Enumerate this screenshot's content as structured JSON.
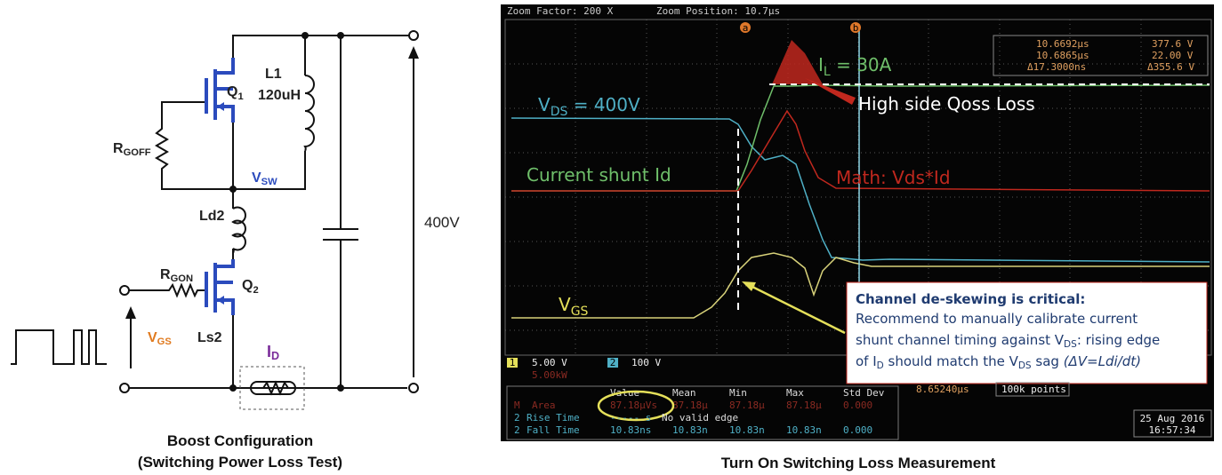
{
  "circuit": {
    "caption": [
      "Boost Configuration",
      "(Switching Power Loss Test)"
    ],
    "labels": {
      "q1": {
        "base": "Q",
        "sub": "1"
      },
      "l1": "L1",
      "l1_value": "120uH",
      "rgoff": {
        "base": "R",
        "sub": "GOFF"
      },
      "vsw": {
        "base": "V",
        "sub": "SW"
      },
      "ld2": "Ld2",
      "rgon": {
        "base": "R",
        "sub": "GON"
      },
      "q2": {
        "base": "Q",
        "sub": "2"
      },
      "vgs": {
        "base": "V",
        "sub": "GS"
      },
      "ls2": "Ls2",
      "id": {
        "base": "I",
        "sub": "D"
      },
      "vout": "400V"
    }
  },
  "scope": {
    "caption": "Turn On Switching Loss Measurement",
    "header": [
      "Zoom Factor: 200 X",
      "Zoom Position: 10.7µs"
    ],
    "cursors": {
      "a": "a",
      "b": "b",
      "a_time": "10.6692µs",
      "a_value": "377.6 V",
      "b_time": "10.6865µs",
      "b_value": "22.00 V",
      "delta_time": "Δ17.3000ns",
      "delta_value": "Δ355.6 V"
    },
    "annotations": {
      "il": {
        "base": "I",
        "sub": "L",
        "rest": " = 30A"
      },
      "vds": {
        "base": "V",
        "sub": "DS",
        "rest": " = 400V"
      },
      "qoss": "High side Qoss Loss",
      "shunt": "Current shunt Id",
      "math": "Math: Vds*Id",
      "vgs": {
        "base": "V",
        "sub": "GS"
      }
    },
    "callout": {
      "title": "Channel de-skewing is critical:",
      "lines": [
        [
          "Recommend to manually calibrate current"
        ],
        [
          "shunt channel timing against V",
          "DS",
          ": rising edge"
        ],
        [
          "of I",
          "D",
          " should match the V",
          "DS",
          " sag ",
          "(ΔV=Ldi/dt)"
        ]
      ]
    },
    "channels": [
      {
        "badge": "1",
        "scale": "5.00 V"
      },
      {
        "badge": "2",
        "scale": "100 V"
      }
    ],
    "math_scale": "5.00kW",
    "measurements": {
      "headers": [
        "Value",
        "Mean",
        "Min",
        "Max",
        "Std Dev"
      ],
      "rows": [
        {
          "badge": "M",
          "name": "Area",
          "cells": [
            "87.18µVs",
            "87.18µ",
            "87.18µ",
            "87.18µ",
            "0.000"
          ]
        },
        {
          "badge": "2",
          "name": "Rise Time",
          "cells": [
            "----- s",
            "No valid edge"
          ]
        },
        {
          "badge": "2",
          "name": "Fall Time",
          "cells": [
            "10.83ns",
            "10.83n",
            "10.83n",
            "10.83n",
            "0.000"
          ]
        }
      ]
    },
    "timebase": "8.65240µs",
    "points": "100k points",
    "date": "25 Aug 2016",
    "time": "16:57:34"
  }
}
